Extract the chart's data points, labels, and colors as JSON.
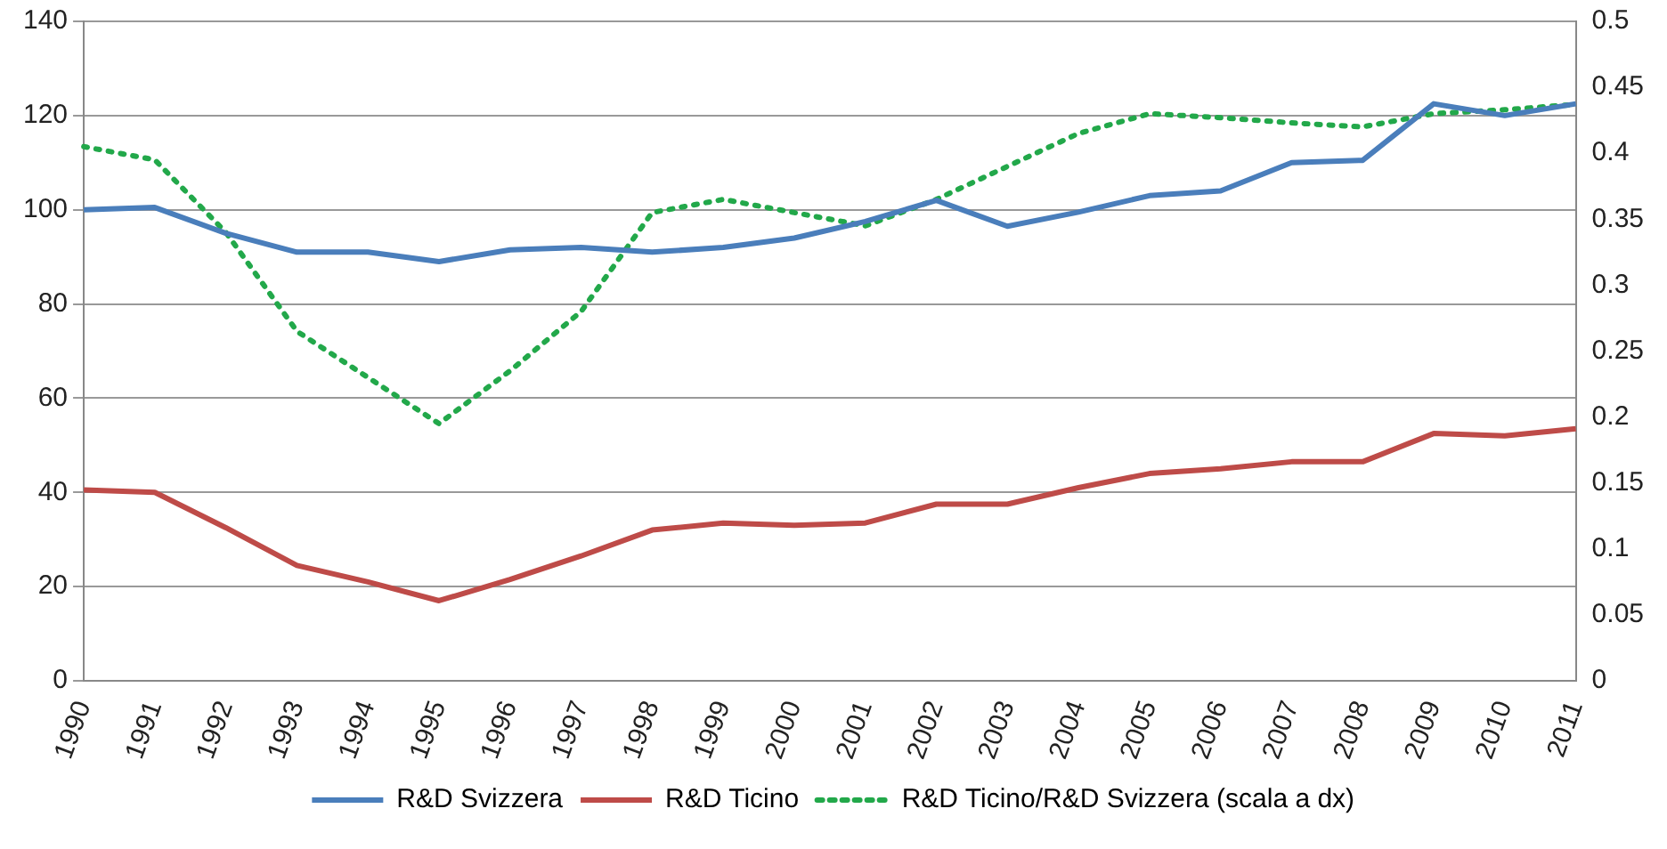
{
  "chart_data": {
    "type": "line",
    "categories": [
      "1990",
      "1991",
      "1992",
      "1993",
      "1994",
      "1995",
      "1996",
      "1997",
      "1998",
      "1999",
      "2000",
      "2001",
      "2002",
      "2003",
      "2004",
      "2005",
      "2006",
      "2007",
      "2008",
      "2009",
      "2010",
      "2011"
    ],
    "series": [
      {
        "name": "R&D Svizzera",
        "color": "#4a7ebb",
        "values": [
          100,
          100.5,
          95,
          91,
          91,
          89,
          91.5,
          92,
          91,
          92,
          94,
          97.5,
          102,
          96.5,
          99.5,
          103,
          104,
          110,
          110.5,
          122.5,
          120,
          122.5
        ]
      },
      {
        "name": "R&D Ticino",
        "color": "#be4b48",
        "values": [
          40.5,
          40,
          32.5,
          24.5,
          21,
          17,
          21.5,
          26.5,
          32,
          33.5,
          33,
          33.5,
          37.5,
          37.5,
          41,
          44,
          45,
          46.5,
          46.5,
          52.5,
          52,
          53.5
        ]
      },
      {
        "name": "R&D Ticino/R&D Svizzera (scala a dx)",
        "color": "#22a84a",
        "axis": "y2",
        "line_style": "dotted",
        "values": [
          0.405,
          0.395,
          0.34,
          0.265,
          0.23,
          0.195,
          0.235,
          0.28,
          0.355,
          0.365,
          0.355,
          0.345,
          0.365,
          0.39,
          0.415,
          0.43,
          0.427,
          0.423,
          0.42,
          0.43,
          0.433,
          0.437
        ]
      }
    ],
    "ylim": [
      0,
      140
    ],
    "yticks": [
      0,
      20,
      40,
      60,
      80,
      100,
      120,
      140
    ],
    "y2lim": [
      0,
      0.5
    ],
    "y2ticks": [
      0,
      0.05,
      0.1,
      0.15,
      0.2,
      0.25,
      0.3,
      0.35,
      0.4,
      0.45,
      0.5
    ],
    "grid": "y",
    "legend": "bottom",
    "marker": "none",
    "line_style": "solid"
  }
}
